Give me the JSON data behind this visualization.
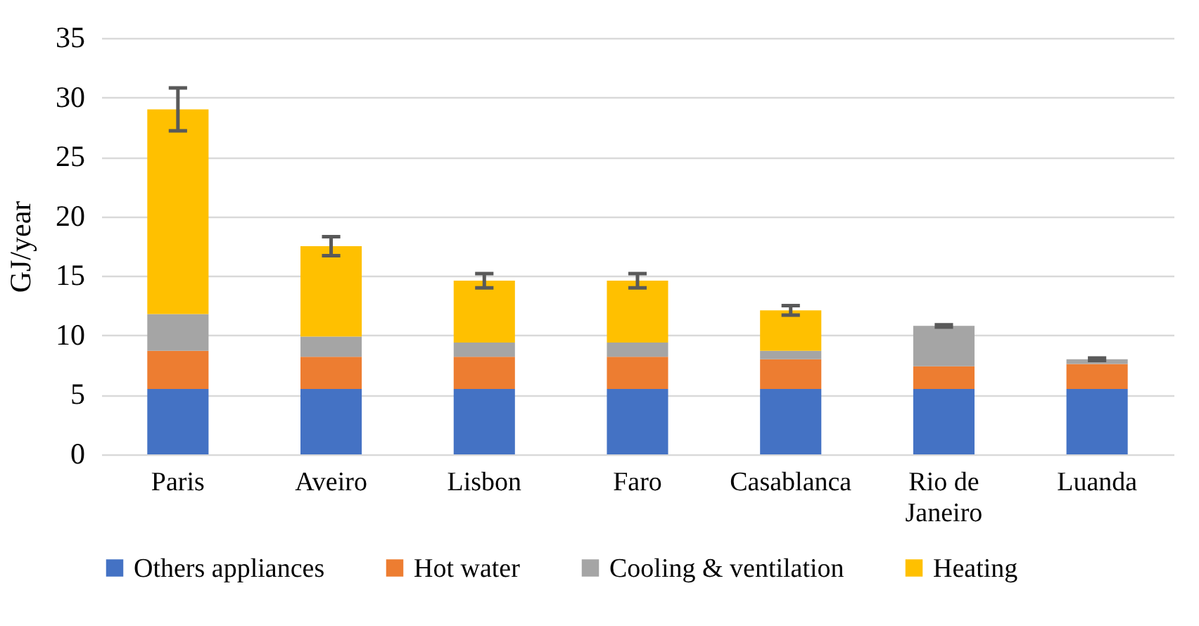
{
  "chart_data": {
    "type": "bar",
    "stacked": true,
    "ylabel": "GJ/year",
    "categories": [
      "Paris",
      "Aveiro",
      "Lisbon",
      "Faro",
      "Casablanca",
      "Rio de Janeiro",
      "Luanda"
    ],
    "series": [
      {
        "name": "Others appliances",
        "color": "#4472c4",
        "values": [
          5.5,
          5.5,
          5.5,
          5.5,
          5.5,
          5.5,
          5.5
        ]
      },
      {
        "name": "Hot water",
        "color": "#ed7d31",
        "values": [
          3.2,
          2.7,
          2.7,
          2.7,
          2.5,
          1.9,
          2.1
        ]
      },
      {
        "name": "Cooling & ventilation",
        "color": "#a5a5a5",
        "values": [
          3.1,
          1.7,
          1.2,
          1.2,
          0.7,
          3.4,
          0.4
        ]
      },
      {
        "name": "Heating",
        "color": "#ffc000",
        "values": [
          17.2,
          7.6,
          5.2,
          5.2,
          3.4,
          0,
          0
        ],
        "errors": [
          1.8,
          0.8,
          0.6,
          0.6,
          0.4,
          0.1,
          0.1
        ]
      }
    ],
    "ylim": [
      0,
      35
    ],
    "yticks": [
      0,
      5,
      10,
      15,
      20,
      25,
      30,
      35
    ],
    "grid": "y",
    "legend": "bottom"
  }
}
